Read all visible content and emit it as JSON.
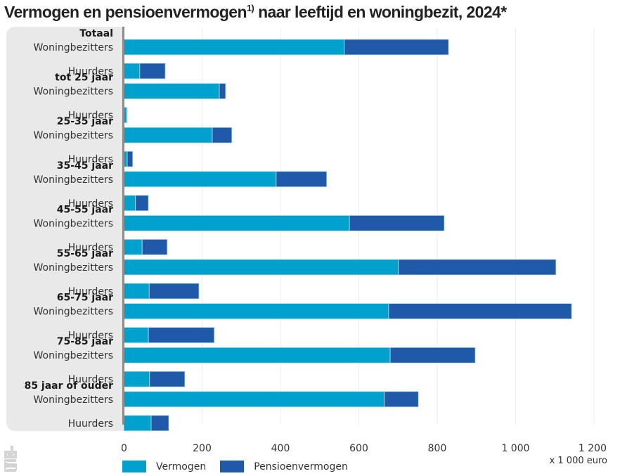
{
  "title": "Vermogen en pensioenvermogen",
  "title_sup": "1)",
  "title_rest": " naar leeftijd en woningbezit, 2024*",
  "unit_label": "x 1 000 euro",
  "logo": "cbs-logo",
  "colors": {
    "vermogen": "#00a1cd",
    "pensioenvermogen": "#2059a7",
    "grid": "#ececec",
    "panel": "#e9e9e9"
  },
  "legend": [
    {
      "name": "Vermogen",
      "color": "#00a1cd"
    },
    {
      "name": "Pensioenvermogen",
      "color": "#2059a7"
    }
  ],
  "chart_data": {
    "type": "bar",
    "orientation": "horizontal",
    "stacked": true,
    "title": "Vermogen en pensioenvermogen1) naar leeftijd en woningbezit, 2024*",
    "xlabel": "x 1 000 euro",
    "ylabel": "",
    "xlim": [
      0,
      1200
    ],
    "xticks": [
      0,
      200,
      400,
      600,
      800,
      1000,
      1200
    ],
    "xtick_labels": [
      "0",
      "200",
      "400",
      "600",
      "800",
      "1 000",
      "1 200"
    ],
    "grid": true,
    "legend_position": "bottom-left",
    "groups": [
      {
        "label": "Totaal",
        "rows": [
          {
            "label": "Woningbezitters",
            "vermogen": 563,
            "pensioenvermogen": 266
          },
          {
            "label": "Huurders",
            "vermogen": 41,
            "pensioenvermogen": 65
          }
        ]
      },
      {
        "label": "tot 25 jaar",
        "rows": [
          {
            "label": "Woningbezitters",
            "vermogen": 244,
            "pensioenvermogen": 16
          },
          {
            "label": "Huurders",
            "vermogen": 7,
            "pensioenvermogen": 2
          }
        ]
      },
      {
        "label": "25-35 jaar",
        "rows": [
          {
            "label": "Woningbezitters",
            "vermogen": 226,
            "pensioenvermogen": 50
          },
          {
            "label": "Huurders",
            "vermogen": 9,
            "pensioenvermogen": 14
          }
        ]
      },
      {
        "label": "35-45 jaar",
        "rows": [
          {
            "label": "Woningbezitters",
            "vermogen": 389,
            "pensioenvermogen": 129
          },
          {
            "label": "Huurders",
            "vermogen": 30,
            "pensioenvermogen": 33
          }
        ]
      },
      {
        "label": "45-55 jaar",
        "rows": [
          {
            "label": "Woningbezitters",
            "vermogen": 576,
            "pensioenvermogen": 242
          },
          {
            "label": "Huurders",
            "vermogen": 47,
            "pensioenvermogen": 64
          }
        ]
      },
      {
        "label": "55-65 jaar",
        "rows": [
          {
            "label": "Woningbezitters",
            "vermogen": 701,
            "pensioenvermogen": 402
          },
          {
            "label": "Huurders",
            "vermogen": 65,
            "pensioenvermogen": 127
          }
        ]
      },
      {
        "label": "65-75 jaar",
        "rows": [
          {
            "label": "Woningbezitters",
            "vermogen": 676,
            "pensioenvermogen": 467
          },
          {
            "label": "Huurders",
            "vermogen": 63,
            "pensioenvermogen": 168
          }
        ]
      },
      {
        "label": "75-85 jaar",
        "rows": [
          {
            "label": "Woningbezitters",
            "vermogen": 680,
            "pensioenvermogen": 217
          },
          {
            "label": "Huurders",
            "vermogen": 66,
            "pensioenvermogen": 90
          }
        ]
      },
      {
        "label": "85 jaar of ouder",
        "rows": [
          {
            "label": "Woningbezitters",
            "vermogen": 665,
            "pensioenvermogen": 87
          },
          {
            "label": "Huurders",
            "vermogen": 70,
            "pensioenvermogen": 45
          }
        ]
      }
    ],
    "series": [
      {
        "name": "Vermogen",
        "key": "vermogen"
      },
      {
        "name": "Pensioenvermogen",
        "key": "pensioenvermogen"
      }
    ]
  }
}
